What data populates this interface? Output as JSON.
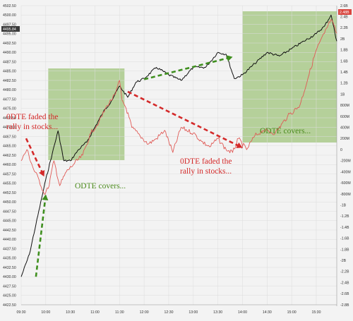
{
  "chart_data": {
    "type": "line",
    "title": "",
    "x": [
      "09:30",
      "10:00",
      "10:30",
      "11:00",
      "11:30",
      "12:00",
      "12:30",
      "13:00",
      "13:30",
      "14:00",
      "14:30",
      "15:00",
      "15:30"
    ],
    "xlim": [
      "09:30",
      "15:55"
    ],
    "y_left": {
      "label": "",
      "ylim": [
        4422.5,
        4502.5
      ],
      "ticks": [
        "4502.50",
        "4500.00",
        "4497.50",
        "4495.00",
        "4492.50",
        "4490.00",
        "4487.50",
        "4485.00",
        "4482.50",
        "4480.00",
        "4477.50",
        "4475.00",
        "4472.50",
        "4470.00",
        "4467.50",
        "4465.00",
        "4462.50",
        "4460.00",
        "4457.50",
        "4455.00",
        "4452.50",
        "4450.00",
        "4447.50",
        "4445.00",
        "4442.50",
        "4440.00",
        "4437.50",
        "4435.00",
        "4432.50",
        "4430.00",
        "4427.50",
        "4425.00",
        "4422.50"
      ]
    },
    "y_right": {
      "label": "",
      "ticks": [
        "2.6B",
        "2.4B",
        "2.2B",
        "2B",
        "1.8B",
        "1.6B",
        "1.4B",
        "1.2B",
        "1B",
        "800M",
        "600M",
        "400M",
        "200M",
        "0",
        "-200M",
        "-400M",
        "-600M",
        "-800M",
        "-1B",
        "-1.2B",
        "-1.4B",
        "-1.6B",
        "-1.8B",
        "-2B",
        "-2.2B",
        "-2.4B",
        "-2.6B",
        "-2.8B"
      ]
    },
    "series": [
      {
        "name": "",
        "color": "#111111",
        "axis": "left",
        "x": [
          "09:30",
          "09:40",
          "09:48",
          "09:55",
          "10:00",
          "10:08",
          "10:15",
          "10:22",
          "10:30",
          "10:40",
          "10:50",
          "11:00",
          "11:10",
          "11:20",
          "11:30",
          "11:40",
          "11:50",
          "12:00",
          "12:15",
          "12:30",
          "12:45",
          "13:00",
          "13:15",
          "13:30",
          "13:40",
          "13:50",
          "14:00",
          "14:15",
          "14:30",
          "14:45",
          "15:00",
          "15:15",
          "15:30",
          "15:40",
          "15:48",
          "15:55"
        ],
        "values": [
          4430,
          4436,
          4444,
          4451,
          4456,
          4463,
          4469,
          4461,
          4461,
          4464,
          4466,
          4470,
          4474,
          4477,
          4481,
          4478,
          4482,
          4483,
          4486,
          4484,
          4482.5,
          4486,
          4486,
          4490,
          4489.5,
          4483,
          4484,
          4487,
          4490,
          4489,
          4491,
          4493,
          4495,
          4497,
          4500,
          4493
        ]
      },
      {
        "name": "",
        "color": "#e05a56",
        "axis": "right",
        "x": [
          "09:30",
          "09:37",
          "09:45",
          "09:52",
          "09:58",
          "10:03",
          "10:10",
          "10:17",
          "10:25",
          "10:35",
          "10:45",
          "10:55",
          "11:05",
          "11:15",
          "11:25",
          "11:30",
          "11:33",
          "11:38",
          "11:45",
          "11:55",
          "12:05",
          "12:15",
          "12:25",
          "12:35",
          "12:45",
          "13:00",
          "13:10",
          "13:20",
          "13:30",
          "13:40",
          "13:48",
          "13:55",
          "14:05",
          "14:15",
          "14:25",
          "14:40",
          "14:55",
          "15:10",
          "15:20",
          "15:30",
          "15:40",
          "15:48",
          "15:55"
        ],
        "values": [
          -0.2,
          0.0,
          -0.35,
          -0.55,
          -0.8,
          -0.7,
          -0.2,
          -0.65,
          -0.4,
          -0.25,
          -0.1,
          0.3,
          0.5,
          0.8,
          1.0,
          1.25,
          0.9,
          0.75,
          0.4,
          0.25,
          0.1,
          0.2,
          0.35,
          -0.05,
          0.4,
          0.3,
          0.15,
          0.05,
          0.2,
          0.0,
          -0.05,
          0.2,
          0.0,
          0.25,
          0.35,
          0.3,
          0.6,
          0.8,
          1.3,
          1.8,
          2.1,
          2.35,
          2.1
        ]
      }
    ],
    "shaded_regions": [
      {
        "x": [
          "10:03",
          "11:36"
        ],
        "color": "#a9c98a"
      },
      {
        "x": [
          "14:00",
          "15:55"
        ],
        "color": "#a9c98a"
      }
    ],
    "arrows": [
      {
        "from": [
          "09:36",
          4467.0
        ],
        "to": [
          "09:58",
          4456.8
        ],
        "color": "#d42a2a"
      },
      {
        "from": [
          "09:48",
          4430.0
        ],
        "to": [
          "10:00",
          4452.0
        ],
        "color": "#3f8f1f"
      },
      {
        "from": [
          "11:40",
          4479.5
        ],
        "to": [
          "14:00",
          4464.5
        ],
        "color": "#d42a2a"
      },
      {
        "from": [
          "12:00",
          4482.8
        ],
        "to": [
          "13:48",
          4488.8
        ],
        "color": "#3f8f1f"
      }
    ],
    "annotations": [
      {
        "text": "0DTE faded the",
        "color": "red"
      },
      {
        "text": "rally in stocks...",
        "color": "red"
      },
      {
        "text": "ODTE covers...",
        "color": "green"
      },
      {
        "text": "0DTE faded the",
        "color": "red"
      },
      {
        "text": "rally in stocks...",
        "color": "red"
      },
      {
        "text": "ODTE covers...",
        "color": "green"
      }
    ],
    "price_badge": {
      "text": "4495.84"
    },
    "right_badge": {
      "text": "2.48B"
    },
    "grid": true
  }
}
